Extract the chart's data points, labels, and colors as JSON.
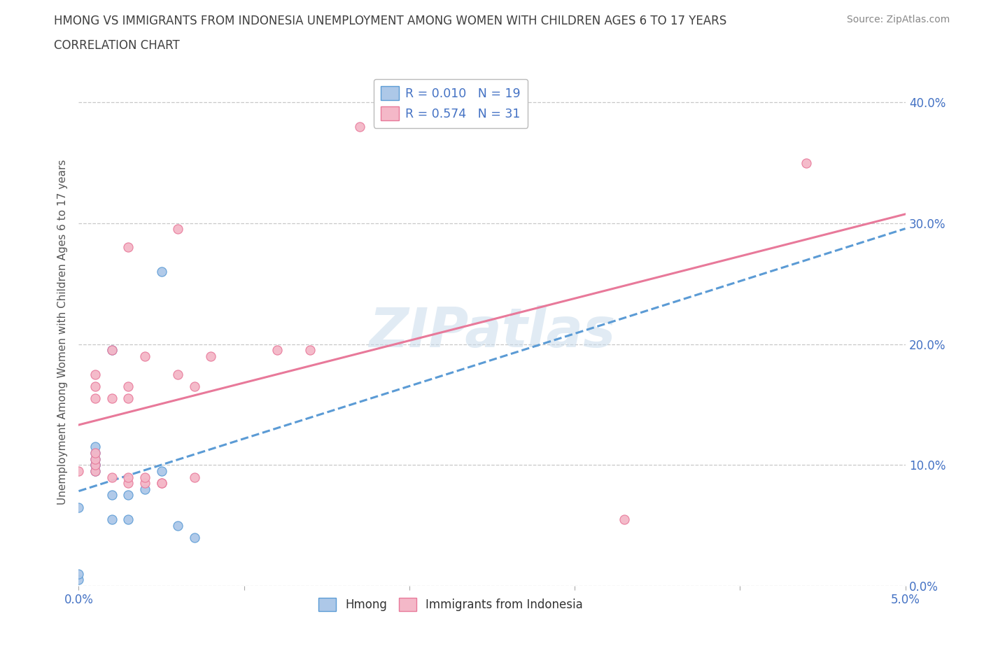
{
  "title_line1": "HMONG VS IMMIGRANTS FROM INDONESIA UNEMPLOYMENT AMONG WOMEN WITH CHILDREN AGES 6 TO 17 YEARS",
  "title_line2": "CORRELATION CHART",
  "source_text": "Source: ZipAtlas.com",
  "ylabel": "Unemployment Among Women with Children Ages 6 to 17 years",
  "watermark": "ZIPatlas",
  "xlim": [
    0.0,
    0.05
  ],
  "ylim": [
    0.0,
    0.42
  ],
  "ytick_vals": [
    0.0,
    0.1,
    0.2,
    0.3,
    0.4
  ],
  "ytick_labels": [
    "0.0%",
    "10.0%",
    "20.0%",
    "30.0%",
    "40.0%"
  ],
  "xtick_vals": [
    0.0,
    0.01,
    0.02,
    0.03,
    0.04,
    0.05
  ],
  "xtick_labels": [
    "0.0%",
    "",
    "",
    "",
    "",
    "5.0%"
  ],
  "hmong_fill": "#adc8e8",
  "hmong_edge": "#5b9bd5",
  "indo_fill": "#f4b8c8",
  "indo_edge": "#e8799a",
  "trend_blue": "#5b9bd5",
  "trend_pink": "#e8799a",
  "legend_text_color": "#4472c4",
  "grid_color": "#c8c8c8",
  "tick_color": "#4472c4",
  "title_color": "#404040",
  "ylabel_color": "#555555",
  "source_color": "#888888",
  "hmong_x": [
    0.0,
    0.0,
    0.0,
    0.001,
    0.001,
    0.001,
    0.001,
    0.001,
    0.001,
    0.002,
    0.002,
    0.002,
    0.003,
    0.003,
    0.004,
    0.005,
    0.005,
    0.006,
    0.007
  ],
  "hmong_y": [
    0.005,
    0.01,
    0.065,
    0.095,
    0.1,
    0.1,
    0.105,
    0.11,
    0.115,
    0.055,
    0.075,
    0.195,
    0.055,
    0.075,
    0.08,
    0.26,
    0.095,
    0.05,
    0.04
  ],
  "indo_x": [
    0.0,
    0.001,
    0.001,
    0.001,
    0.001,
    0.001,
    0.001,
    0.001,
    0.002,
    0.002,
    0.002,
    0.003,
    0.003,
    0.003,
    0.003,
    0.003,
    0.004,
    0.004,
    0.004,
    0.005,
    0.005,
    0.006,
    0.006,
    0.007,
    0.007,
    0.008,
    0.012,
    0.014,
    0.017,
    0.033,
    0.044
  ],
  "indo_y": [
    0.095,
    0.095,
    0.1,
    0.105,
    0.11,
    0.155,
    0.165,
    0.175,
    0.09,
    0.155,
    0.195,
    0.085,
    0.09,
    0.155,
    0.165,
    0.28,
    0.085,
    0.09,
    0.19,
    0.085,
    0.085,
    0.175,
    0.295,
    0.09,
    0.165,
    0.19,
    0.195,
    0.195,
    0.38,
    0.055,
    0.35
  ],
  "legend_R1": "R = 0.010",
  "legend_N1": "N = 19",
  "legend_R2": "R = 0.574",
  "legend_N2": "N = 31",
  "label_hmong": "Hmong",
  "label_indo": "Immigrants from Indonesia"
}
